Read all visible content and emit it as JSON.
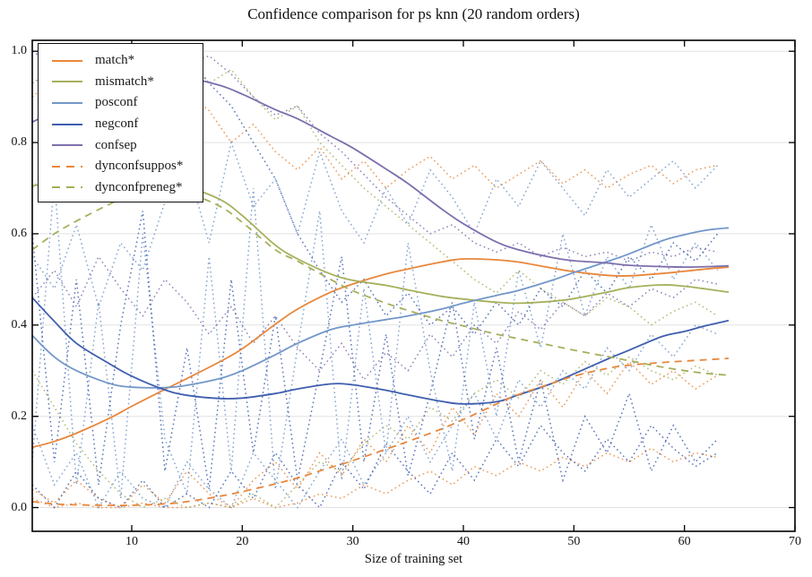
{
  "page": {
    "title": "Confidence comparison for ps knn (20 random orders)"
  },
  "chart_data": {
    "type": "line",
    "title": "Confidence comparison for ps knn (20 random orders)",
    "xlabel": "Size of training set",
    "ylabel": "",
    "xlim": [
      1,
      70
    ],
    "ylim": [
      -0.052,
      1.024
    ],
    "x_ticks": [
      10,
      20,
      30,
      40,
      50,
      60,
      70
    ],
    "x_tick_labels": [
      "10",
      "20",
      "30",
      "40",
      "50",
      "60",
      "70"
    ],
    "y_ticks": [
      0.0,
      0.2,
      0.4,
      0.6,
      0.8,
      1.0
    ],
    "y_tick_labels": [
      "0.0",
      "0.2",
      "0.4",
      "0.6",
      "0.8",
      "1.0"
    ],
    "grid": "horizontal-light",
    "gridline_color": "#e2e2e2",
    "legend_position": "upper left",
    "x": [
      1,
      3,
      5,
      8,
      10,
      13,
      15,
      18,
      20,
      23,
      25,
      28,
      30,
      33,
      35,
      38,
      40,
      43,
      45,
      48,
      50,
      53,
      55,
      58,
      60,
      62,
      64
    ],
    "series": [
      {
        "label": "match*",
        "color": "#e8873c",
        "style": "solid",
        "values": [
          0.132,
          0.145,
          0.163,
          0.196,
          0.222,
          0.259,
          0.283,
          0.32,
          0.348,
          0.402,
          0.435,
          0.472,
          0.49,
          0.512,
          0.523,
          0.538,
          0.545,
          0.543,
          0.538,
          0.525,
          0.517,
          0.509,
          0.508,
          0.513,
          0.518,
          0.523,
          0.527
        ]
      },
      {
        "label": "mismatch*",
        "color": "#a6b05c",
        "style": "solid",
        "values": [
          0.705,
          0.712,
          0.716,
          0.718,
          0.716,
          0.71,
          0.703,
          0.675,
          0.64,
          0.575,
          0.545,
          0.512,
          0.498,
          0.487,
          0.477,
          0.463,
          0.457,
          0.45,
          0.448,
          0.452,
          0.458,
          0.472,
          0.482,
          0.488,
          0.485,
          0.479,
          0.472
        ]
      },
      {
        "label": "posconf",
        "color": "#7297c9",
        "style": "solid",
        "values": [
          0.377,
          0.33,
          0.3,
          0.272,
          0.264,
          0.263,
          0.268,
          0.283,
          0.3,
          0.335,
          0.36,
          0.39,
          0.4,
          0.412,
          0.42,
          0.435,
          0.448,
          0.465,
          0.476,
          0.498,
          0.515,
          0.539,
          0.556,
          0.585,
          0.598,
          0.608,
          0.613
        ]
      },
      {
        "label": "negconf",
        "color": "#3f5fae",
        "style": "solid",
        "values": [
          0.46,
          0.408,
          0.36,
          0.315,
          0.288,
          0.258,
          0.246,
          0.239,
          0.24,
          0.25,
          0.26,
          0.271,
          0.269,
          0.257,
          0.247,
          0.233,
          0.227,
          0.232,
          0.247,
          0.272,
          0.293,
          0.325,
          0.345,
          0.375,
          0.386,
          0.399,
          0.41
        ]
      },
      {
        "label": "confsep",
        "color": "#7e6fad",
        "style": "solid",
        "values": [
          0.845,
          0.868,
          0.89,
          0.915,
          0.928,
          0.938,
          0.941,
          0.925,
          0.906,
          0.872,
          0.852,
          0.814,
          0.788,
          0.742,
          0.71,
          0.655,
          0.622,
          0.582,
          0.565,
          0.548,
          0.541,
          0.536,
          0.531,
          0.528,
          0.527,
          0.528,
          0.53
        ]
      },
      {
        "label": "dynconfsuppos*",
        "color": "#e8873c",
        "style": "dashed",
        "values": [
          0.013,
          0.008,
          0.006,
          0.005,
          0.005,
          0.008,
          0.013,
          0.025,
          0.035,
          0.052,
          0.065,
          0.088,
          0.103,
          0.128,
          0.145,
          0.172,
          0.193,
          0.227,
          0.248,
          0.272,
          0.288,
          0.305,
          0.312,
          0.318,
          0.321,
          0.324,
          0.327
        ]
      },
      {
        "label": "dynconfpreneg*",
        "color": "#a6b05c",
        "style": "dashed",
        "values": [
          0.565,
          0.6,
          0.628,
          0.665,
          0.685,
          0.698,
          0.69,
          0.66,
          0.625,
          0.565,
          0.54,
          0.5,
          0.475,
          0.448,
          0.432,
          0.41,
          0.398,
          0.38,
          0.37,
          0.355,
          0.345,
          0.331,
          0.322,
          0.308,
          0.3,
          0.294,
          0.29
        ]
      }
    ],
    "envelope_x": [
      1,
      3,
      5,
      7,
      9,
      11,
      13,
      15,
      17,
      19,
      21,
      23,
      25,
      27,
      29,
      31,
      33,
      35,
      37,
      39,
      41,
      43,
      45,
      47,
      49,
      51,
      53,
      55,
      57,
      59,
      61,
      63
    ],
    "envelope_lines": [
      {
        "series": "match*",
        "bound": "max",
        "color": "#e8873c",
        "style": "dotted",
        "values": [
          0.9,
          0.94,
          0.88,
          0.92,
          0.96,
          0.9,
          0.85,
          0.91,
          0.87,
          0.8,
          0.84,
          0.78,
          0.74,
          0.79,
          0.72,
          0.76,
          0.7,
          0.74,
          0.77,
          0.72,
          0.75,
          0.7,
          0.73,
          0.76,
          0.71,
          0.74,
          0.7,
          0.73,
          0.75,
          0.71,
          0.74,
          0.75
        ]
      },
      {
        "series": "match*",
        "bound": "min",
        "color": "#e8873c",
        "style": "dotted",
        "values": [
          0.02,
          0.0,
          0.01,
          0.0,
          0.0,
          0.01,
          0.0,
          0.0,
          0.01,
          0.0,
          0.02,
          0.0,
          0.01,
          0.03,
          0.02,
          0.05,
          0.03,
          0.06,
          0.08,
          0.05,
          0.09,
          0.07,
          0.1,
          0.08,
          0.11,
          0.09,
          0.12,
          0.1,
          0.13,
          0.1,
          0.12,
          0.11
        ]
      },
      {
        "series": "match*",
        "bound": "run",
        "color": "#e8873c",
        "style": "dotted",
        "values": [
          0.04,
          0.01,
          0.06,
          0.02,
          0.0,
          0.05,
          0.01,
          0.08,
          0.03,
          0.0,
          0.06,
          0.1,
          0.04,
          0.12,
          0.07,
          0.15,
          0.1,
          0.18,
          0.12,
          0.22,
          0.16,
          0.25,
          0.2,
          0.28,
          0.22,
          0.3,
          0.25,
          0.32,
          0.27,
          0.3,
          0.26,
          0.29
        ]
      },
      {
        "series": "mismatch*",
        "bound": "max",
        "color": "#a6b05c",
        "style": "dotted",
        "values": [
          0.7,
          0.76,
          0.72,
          0.8,
          0.86,
          0.92,
          0.97,
          0.99,
          0.93,
          0.96,
          0.9,
          0.85,
          0.88,
          0.8,
          0.75,
          0.7,
          0.66,
          0.62,
          0.58,
          0.54,
          0.5,
          0.47,
          0.52,
          0.48,
          0.45,
          0.42,
          0.46,
          0.44,
          0.4,
          0.43,
          0.45,
          0.42
        ]
      },
      {
        "series": "mismatch*",
        "bound": "min",
        "color": "#a6b05c",
        "style": "dotted",
        "values": [
          0.3,
          0.22,
          0.14,
          0.08,
          0.03,
          0.0,
          0.02,
          0.0,
          0.01,
          0.0,
          0.03,
          0.0,
          0.05,
          0.1,
          0.08,
          0.14,
          0.18,
          0.15,
          0.22,
          0.19,
          0.25,
          0.28,
          0.24,
          0.3,
          0.27,
          0.32,
          0.29,
          0.33,
          0.3,
          0.28,
          0.31,
          0.29
        ]
      },
      {
        "series": "posconf",
        "bound": "max",
        "color": "#7297c9",
        "style": "dotted",
        "values": [
          0.55,
          0.48,
          0.62,
          0.44,
          0.58,
          0.52,
          0.67,
          0.75,
          0.58,
          0.8,
          0.66,
          0.72,
          0.6,
          0.78,
          0.65,
          0.58,
          0.7,
          0.62,
          0.74,
          0.68,
          0.6,
          0.72,
          0.66,
          0.76,
          0.7,
          0.64,
          0.74,
          0.68,
          0.72,
          0.76,
          0.7,
          0.75
        ]
      },
      {
        "series": "posconf",
        "bound": "min",
        "color": "#7297c9",
        "style": "dotted",
        "values": [
          0.18,
          0.05,
          0.12,
          0.0,
          0.08,
          0.02,
          0.0,
          0.1,
          0.04,
          0.0,
          0.12,
          0.06,
          0.0,
          0.08,
          0.15,
          0.05,
          0.12,
          0.2,
          0.1,
          0.18,
          0.25,
          0.15,
          0.28,
          0.22,
          0.3,
          0.26,
          0.35,
          0.3,
          0.38,
          0.33,
          0.4,
          0.38
        ]
      },
      {
        "series": "posconf",
        "bound": "run",
        "color": "#7297c9",
        "style": "dotted",
        "values": [
          0.1,
          0.72,
          0.05,
          0.45,
          0.02,
          0.6,
          0.15,
          0.03,
          0.55,
          0.08,
          0.7,
          0.04,
          0.35,
          0.65,
          0.06,
          0.48,
          0.12,
          0.58,
          0.3,
          0.08,
          0.45,
          0.2,
          0.52,
          0.35,
          0.6,
          0.42,
          0.55,
          0.48,
          0.62,
          0.5,
          0.58,
          0.52
        ]
      },
      {
        "series": "negconf",
        "bound": "max",
        "color": "#3f5fae",
        "style": "dotted",
        "values": [
          1.0,
          0.97,
          0.99,
          0.94,
          0.98,
          0.92,
          0.96,
          0.99,
          0.93,
          0.88,
          0.8,
          0.72,
          0.6,
          0.52,
          0.45,
          0.5,
          0.42,
          0.47,
          0.4,
          0.44,
          0.38,
          0.45,
          0.4,
          0.48,
          0.44,
          0.52,
          0.47,
          0.55,
          0.5,
          0.58,
          0.54,
          0.6
        ]
      },
      {
        "series": "negconf",
        "bound": "min",
        "color": "#3f5fae",
        "style": "dotted",
        "values": [
          0.05,
          0.0,
          0.08,
          0.02,
          0.0,
          0.06,
          0.0,
          0.03,
          0.0,
          0.08,
          0.02,
          0.12,
          0.05,
          0.0,
          0.1,
          0.04,
          0.14,
          0.08,
          0.03,
          0.12,
          0.06,
          0.15,
          0.09,
          0.18,
          0.12,
          0.08,
          0.15,
          0.1,
          0.18,
          0.13,
          0.09,
          0.12
        ]
      },
      {
        "series": "negconf",
        "bound": "run",
        "color": "#3f5fae",
        "style": "dotted",
        "values": [
          0.6,
          0.1,
          0.5,
          0.05,
          0.4,
          0.65,
          0.08,
          0.35,
          0.04,
          0.5,
          0.12,
          0.42,
          0.06,
          0.3,
          0.55,
          0.1,
          0.38,
          0.07,
          0.25,
          0.45,
          0.15,
          0.35,
          0.1,
          0.28,
          0.06,
          0.2,
          0.12,
          0.25,
          0.08,
          0.18,
          0.1,
          0.15
        ]
      },
      {
        "series": "confsep",
        "bound": "max",
        "color": "#7e6fad",
        "style": "dotted",
        "values": [
          0.93,
          0.96,
          0.99,
          0.97,
          1.0,
          0.98,
          1.0,
          0.97,
          0.99,
          0.95,
          0.9,
          0.86,
          0.88,
          0.82,
          0.78,
          0.73,
          0.68,
          0.64,
          0.6,
          0.62,
          0.58,
          0.56,
          0.58,
          0.55,
          0.57,
          0.55,
          0.56,
          0.54,
          0.56,
          0.55,
          0.57,
          0.56
        ]
      },
      {
        "series": "confsep",
        "bound": "min",
        "color": "#7e6fad",
        "style": "dotted",
        "values": [
          0.46,
          0.52,
          0.44,
          0.55,
          0.48,
          0.42,
          0.5,
          0.45,
          0.38,
          0.44,
          0.36,
          0.42,
          0.35,
          0.3,
          0.36,
          0.28,
          0.34,
          0.3,
          0.38,
          0.33,
          0.4,
          0.36,
          0.43,
          0.39,
          0.45,
          0.42,
          0.47,
          0.44,
          0.48,
          0.46,
          0.5,
          0.49
        ]
      }
    ]
  }
}
